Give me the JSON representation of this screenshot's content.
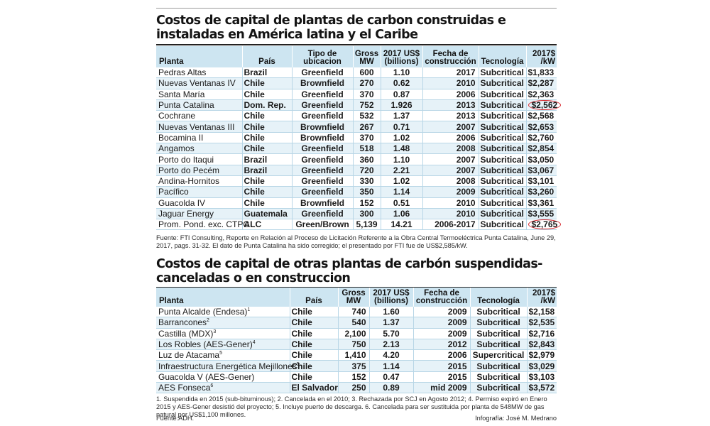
{
  "table1": {
    "title": "Costos de capital de plantas de carbon construidas e instaladas en América latina y el Caribe",
    "headers": [
      "Planta",
      "País",
      "Tipo de ubicacion",
      "Gross MW",
      "2017 US$ (billions)",
      "Fecha de construcción",
      "Tecnología",
      "2017$ /kW"
    ],
    "rows": [
      {
        "planta": "Pedras Altas",
        "pais": "Brazil",
        "tipo": "Greenfield",
        "mw": "600",
        "usd": "1.10",
        "fecha": "2017",
        "tec": "Subcritical",
        "kw": "$1,833"
      },
      {
        "planta": "Nuevas Ventanas IV",
        "pais": "Chile",
        "tipo": "Brownfield",
        "mw": "270",
        "usd": "0.62",
        "fecha": "2010",
        "tec": "Subcritical",
        "kw": "$2,287"
      },
      {
        "planta": "Santa María",
        "pais": "Chile",
        "tipo": "Greenfield",
        "mw": "370",
        "usd": "0.87",
        "fecha": "2006",
        "tec": "Subcritical",
        "kw": "$2,363"
      },
      {
        "planta": "Punta Catalina",
        "pais": "Dom. Rep.",
        "tipo": "Greenfield",
        "mw": "752",
        "usd": "1.926",
        "fecha": "2013",
        "tec": "Subcritical",
        "kw": "$2,562",
        "circled": true
      },
      {
        "planta": "Cochrane",
        "pais": "Chile",
        "tipo": "Greenfield",
        "mw": "532",
        "usd": "1.37",
        "fecha": "2013",
        "tec": "Subcritical",
        "kw": "$2,568"
      },
      {
        "planta": "Nuevas Ventanas III",
        "pais": "Chile",
        "tipo": "Brownfield",
        "mw": "267",
        "usd": "0.71",
        "fecha": "2007",
        "tec": "Subcritical",
        "kw": "$2,653"
      },
      {
        "planta": "Bocamina II",
        "pais": "Chile",
        "tipo": "Brownfield",
        "mw": "370",
        "usd": "1.02",
        "fecha": "2006",
        "tec": "Subcritical",
        "kw": "$2,760"
      },
      {
        "planta": "Angamos",
        "pais": "Chile",
        "tipo": "Greenfield",
        "mw": "518",
        "usd": "1.48",
        "fecha": "2008",
        "tec": "Subcritical",
        "kw": "$2,854"
      },
      {
        "planta": "Porto do Itaqui",
        "pais": "Brazil",
        "tipo": "Greenfield",
        "mw": "360",
        "usd": "1.10",
        "fecha": "2007",
        "tec": "Subcritical",
        "kw": "$3,050"
      },
      {
        "planta": "Porto do Pecém",
        "pais": "Brazil",
        "tipo": "Greenfield",
        "mw": "720",
        "usd": "2.21",
        "fecha": "2007",
        "tec": "Subcritical",
        "kw": "$3,067"
      },
      {
        "planta": "Andina-Hornitos",
        "pais": "Chile",
        "tipo": "Greenfield",
        "mw": "330",
        "usd": "1.02",
        "fecha": "2008",
        "tec": "Subcritical",
        "kw": "$3,101"
      },
      {
        "planta": "Pacífico",
        "pais": "Chile",
        "tipo": "Greenfield",
        "mw": "350",
        "usd": "1.14",
        "fecha": "2009",
        "tec": "Subcritical",
        "kw": "$3,260"
      },
      {
        "planta": "Guacolda IV",
        "pais": "Chile",
        "tipo": "Brownfield",
        "mw": "152",
        "usd": "0.51",
        "fecha": "2010",
        "tec": "Subcritical",
        "kw": "$3,361"
      },
      {
        "planta": "Jaguar Energy",
        "pais": "Guatemala",
        "tipo": "Greenfield",
        "mw": "300",
        "usd": "1.06",
        "fecha": "2010",
        "tec": "Subcritical",
        "kw": "$3,555"
      },
      {
        "planta": "Prom. Pond. exc. CTPC",
        "pais": "ALC",
        "tipo": "Green/Brown",
        "mw": "5,139",
        "usd": "14.21",
        "fecha": "2006-2017",
        "tec": "Subcritical",
        "kw": "$2,765",
        "circled": true
      }
    ],
    "source": "Fuente: FTI Consulting, Reporte en Relación al Proceso de Licitación Referente a la Obra Central Termoeléctrica Punta Catalina, June 29, 2017, pags. 31-32. El dato de Punta Catalina ha sido corregido; el presentado por FTI fue de US$2,585/kW."
  },
  "table2": {
    "title": "Costos de capital de otras plantas de carbón suspendidas-canceladas o en construccion",
    "headers": [
      "Planta",
      "País",
      "Gross MW",
      "2017 US$ (billions)",
      "Fecha de construcción",
      "Tecnología",
      "2017$ /kW"
    ],
    "rows": [
      {
        "planta": "Punta Alcalde (Endesa)",
        "sup": "1",
        "pais": "Chile",
        "mw": "740",
        "usd": "1.60",
        "fecha": "2009",
        "tec": "Subcritical",
        "kw": "$2,158"
      },
      {
        "planta": "Barrancones",
        "sup": "2",
        "pais": "Chile",
        "mw": "540",
        "usd": "1.37",
        "fecha": "2009",
        "tec": "Subcritical",
        "kw": "$2,535"
      },
      {
        "planta": "Castilla (MDX)",
        "sup": "3",
        "pais": "Chile",
        "mw": "2,100",
        "usd": "5.70",
        "fecha": "2009",
        "tec": "Subcritical",
        "kw": "$2,716"
      },
      {
        "planta": "Los Robles (AES-Gener)",
        "sup": "4",
        "pais": "Chile",
        "mw": "750",
        "usd": "2.13",
        "fecha": "2012",
        "tec": "Subcritical",
        "kw": "$2,843"
      },
      {
        "planta": "Luz de Atacama",
        "sup": "5",
        "pais": "Chile",
        "mw": "1,410",
        "usd": "4.20",
        "fecha": "2006",
        "tec": "Supercritical",
        "kw": "$2,979"
      },
      {
        "planta": "Infraestructura Energética Mejillones",
        "sup": "5",
        "pais": "Chile",
        "mw": "375",
        "usd": "1.14",
        "fecha": "2015",
        "tec": "Subcritical",
        "kw": "$3,029"
      },
      {
        "planta": "Guacolda V (AES-Gener)",
        "sup": "",
        "pais": "Chile",
        "mw": "152",
        "usd": "0.47",
        "fecha": "2015",
        "tec": "Subcritical",
        "kw": "$3,103"
      },
      {
        "planta": "AES Fonseca",
        "sup": "6",
        "pais": "El Salvador",
        "mw": "250",
        "usd": "0.89",
        "fecha": "mid 2009",
        "tec": "Subcritical",
        "kw": "$3,572"
      }
    ],
    "notes": "1. Suspendida en 2015 (sub-bituminous); 2. Cancelada en el 2010; 3. Rechazada por SCJ en Agosto 2012; 4. Permiso expiró en Enero 2015 y AES-Gener desistió del proyecto; 5. Incluye puerto de descarga. 6. Cancelada para ser sustituida por planta de 548MW de gas natural por US$1,100 millones.",
    "source": "Fuente:ADH.",
    "credit": "Infografía: José M. Medrano"
  },
  "colors": {
    "header_bg": "#cde5f1",
    "alt_row_bg": "#e6f2f8",
    "circle": "#d6282e"
  }
}
